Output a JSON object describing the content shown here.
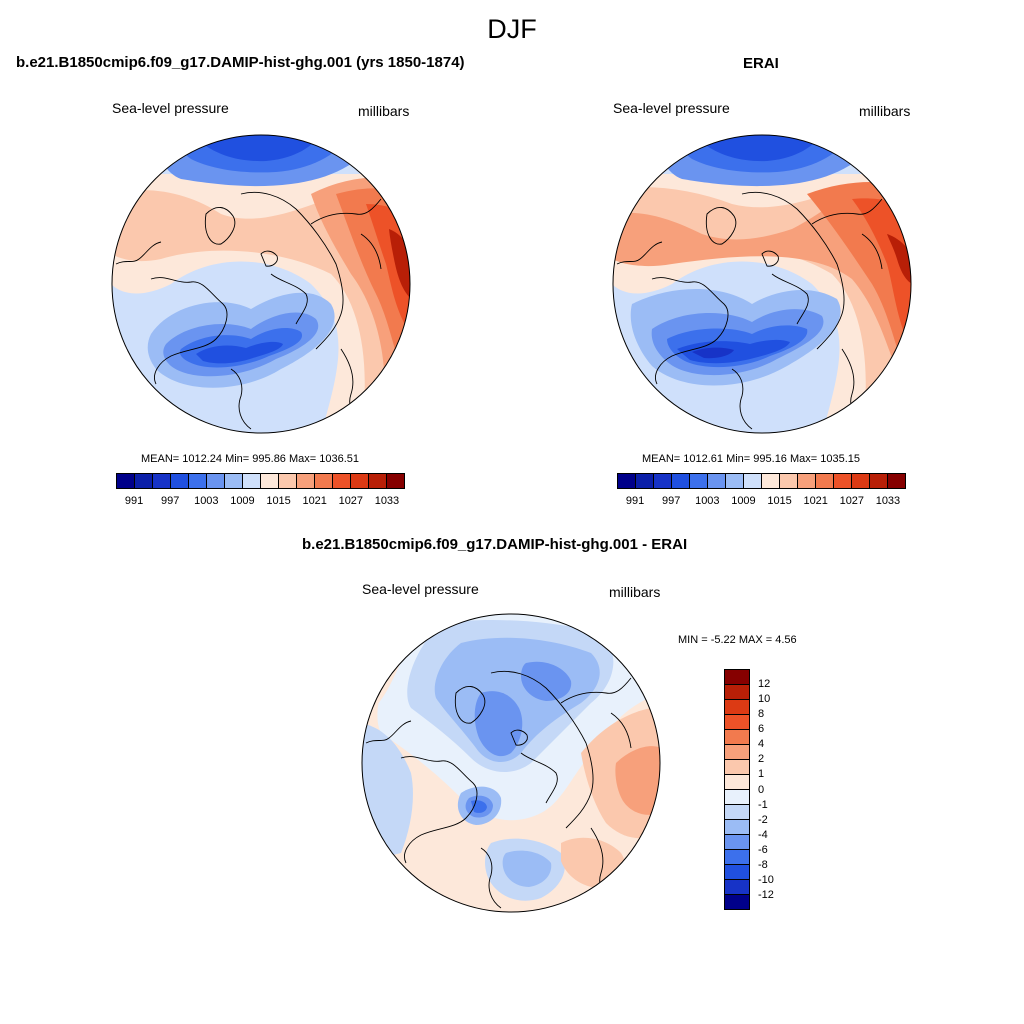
{
  "title": "DJF",
  "panel_model": {
    "title": "b.e21.B1850cmip6.f09_g17.DAMIP-hist-ghg.001 (yrs 1850-1874)",
    "variable": "Sea-level pressure",
    "units": "millibars",
    "stats": "MEAN= 1012.24  Min= 995.86  Max= 1036.51"
  },
  "panel_obs": {
    "title": "ERAI",
    "variable": "Sea-level pressure",
    "units": "millibars",
    "stats": "MEAN= 1012.61  Min= 995.16  Max= 1035.15"
  },
  "panel_diff": {
    "title": "b.e21.B1850cmip6.f09_g17.DAMIP-hist-ghg.001 - ERAI",
    "variable": "Sea-level pressure",
    "units": "millibars",
    "stats": "MIN =  -5.22 MAX =   4.56"
  },
  "abs_colorbar": {
    "colors": [
      "#00008a",
      "#0b1fa9",
      "#1733c7",
      "#2050e0",
      "#3c70ec",
      "#6a94f0",
      "#9bbcf5",
      "#cfe0fb",
      "#fde8da",
      "#fbc8ad",
      "#f7a07b",
      "#f27a4e",
      "#ed5228",
      "#dc3a14",
      "#b81f07",
      "#860000"
    ],
    "labels": [
      "991",
      "997",
      "1003",
      "1009",
      "1015",
      "1021",
      "1027",
      "1033"
    ]
  },
  "diff_colorbar": {
    "colors": [
      "#860000",
      "#b81f07",
      "#dc3a14",
      "#ed5228",
      "#f27a4e",
      "#f7a07b",
      "#fbc8ad",
      "#fde8da",
      "#e8f1fc",
      "#c4d8f7",
      "#9bbcf5",
      "#6a94f0",
      "#3c70ec",
      "#2050e0",
      "#1733c7",
      "#00008a"
    ],
    "labels": [
      "12",
      "10",
      "8",
      "6",
      "4",
      "2",
      "1",
      "0",
      "-1",
      "-2",
      "-4",
      "-6",
      "-8",
      "-10",
      "-12"
    ]
  }
}
